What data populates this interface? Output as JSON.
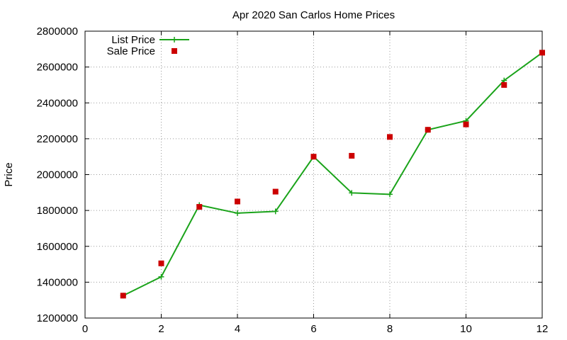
{
  "chart_data": {
    "type": "line",
    "title": "Apr 2020 San Carlos Home Prices",
    "xlabel": "",
    "ylabel": "Price",
    "xlim": [
      0,
      12
    ],
    "ylim": [
      1200000,
      2800000
    ],
    "x_ticks": [
      0,
      2,
      4,
      6,
      8,
      10,
      12
    ],
    "y_ticks": [
      1200000,
      1400000,
      1600000,
      1800000,
      2000000,
      2200000,
      2400000,
      2600000,
      2800000
    ],
    "grid": true,
    "legend_position": "top-left",
    "series": [
      {
        "name": "List Price",
        "style": "line-with-plus-markers",
        "color": "#1aa31a",
        "x": [
          1,
          2,
          3,
          4,
          5,
          6,
          7,
          8,
          9,
          10,
          11,
          12
        ],
        "values": [
          1325000,
          1430000,
          1830000,
          1785000,
          1795000,
          2100000,
          1898000,
          1890000,
          2250000,
          2300000,
          2525000,
          2680000
        ]
      },
      {
        "name": "Sale Price",
        "style": "square-markers",
        "color": "#cc0000",
        "x": [
          1,
          2,
          3,
          4,
          5,
          6,
          7,
          8,
          9,
          10,
          11,
          12
        ],
        "values": [
          1325000,
          1505000,
          1820000,
          1850000,
          1905000,
          2100000,
          2105000,
          2210000,
          2250000,
          2280000,
          2500000,
          2680000
        ]
      }
    ]
  }
}
